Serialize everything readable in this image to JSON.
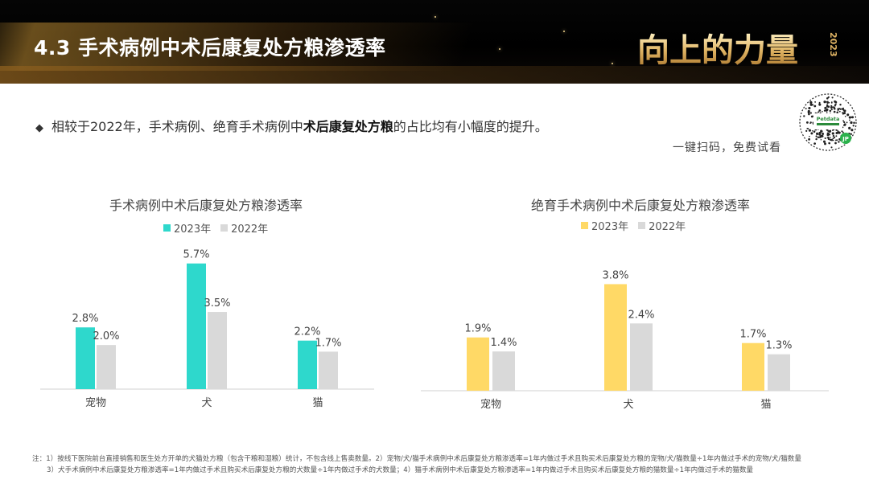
{
  "header": {
    "title": "4.3 手术病例中术后康复处方粮渗透率",
    "brand_text": "向上的力量",
    "brand_year": "2023"
  },
  "bullet": {
    "symbol": "◆",
    "text_before": "相较于2022年，手术病例、绝育手术病例中",
    "text_bold": "术后康复处方粮",
    "text_after": "的占比均有小幅度的提升。"
  },
  "qr": {
    "caption": "一键扫码，免费试看",
    "logo_text": "Petdata",
    "badge": "JP"
  },
  "colors": {
    "left_2023": "#2ED8CC",
    "right_2023": "#FFD966",
    "y2022": "#D9D9D9"
  },
  "chart_data": [
    {
      "type": "bar",
      "title": "手术病例中术后康复处方粮渗透率",
      "categories": [
        "宠物",
        "犬",
        "猫"
      ],
      "series": [
        {
          "name": "2023年",
          "values": [
            2.8,
            5.7,
            2.2
          ],
          "labels": [
            "2.8%",
            "5.7%",
            "2.2%"
          ]
        },
        {
          "name": "2022年",
          "values": [
            2.0,
            3.5,
            1.7
          ],
          "labels": [
            "2.0%",
            "3.5%",
            "1.7%"
          ]
        }
      ],
      "ylim": [
        0,
        6.2
      ],
      "grid": false,
      "legend": "top"
    },
    {
      "type": "bar",
      "title": "绝育手术病例中术后康复处方粮渗透率",
      "categories": [
        "宠物",
        "犬",
        "猫"
      ],
      "series": [
        {
          "name": "2023年",
          "values": [
            1.9,
            3.8,
            1.7
          ],
          "labels": [
            "1.9%",
            "3.8%",
            "1.7%"
          ]
        },
        {
          "name": "2022年",
          "values": [
            1.4,
            2.4,
            1.3
          ],
          "labels": [
            "1.4%",
            "2.4%",
            "1.3%"
          ]
        }
      ],
      "ylim": [
        0,
        4.3
      ],
      "grid": false,
      "legend": "top"
    }
  ],
  "notes": {
    "line1": "注：1）按线下医院前台直接销售和医生处方开单的犬猫处方粮（包含干粮和湿粮）统计，不包含线上售卖数量。2）宠物/犬/猫手术病例中术后康复处方粮渗透率=1年内做过手术且购买术后康复处方粮的宠物/犬/猫数量÷1年内做过手术的宠物/犬/猫数量",
    "line2": "3）犬手术病例中术后康复处方粮渗透率=1年内做过手术且购买术后康复处方粮的犬数量÷1年内做过手术的犬数量；4）猫手术病例中术后康复处方粮渗透率=1年内做过手术且购买术后康复处方粮的猫数量÷1年内做过手术的猫数量"
  }
}
